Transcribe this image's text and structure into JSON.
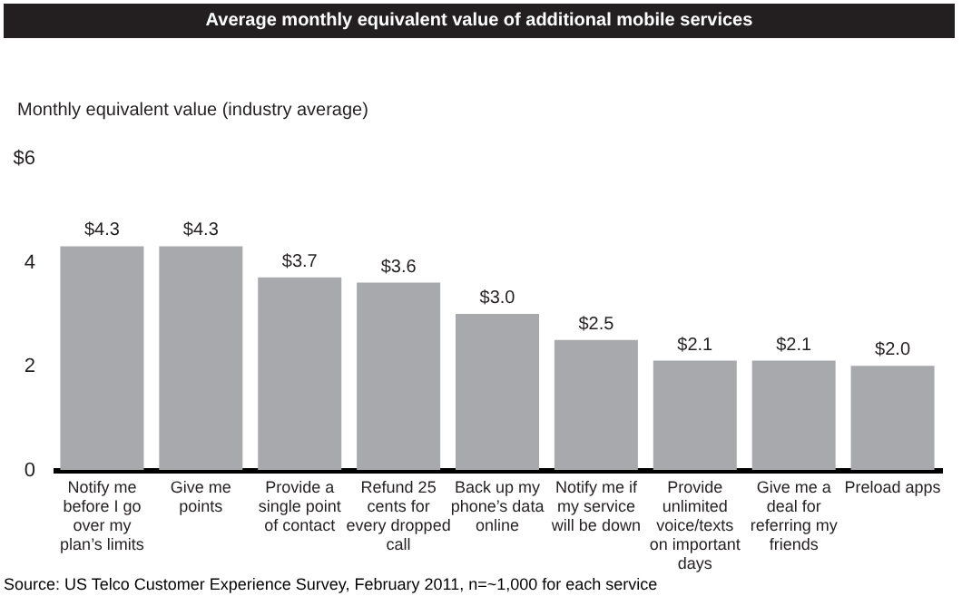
{
  "chart_data": {
    "type": "bar",
    "title": "Average monthly equivalent value of additional mobile services",
    "ylabel": "Monthly equivalent value (industry average)",
    "categories": [
      "Notify me before I go over my plan’s limits",
      "Give me points",
      "Provide a single point of contact",
      "Refund 25 cents for every dropped call",
      "Back up my phone’s data online",
      "Notify me if my service will be down",
      "Provide unlimited voice/texts on important days",
      "Give me a deal for referring my friends",
      "Preload apps"
    ],
    "values": [
      4.3,
      4.3,
      3.7,
      3.6,
      3.0,
      2.5,
      2.1,
      2.1,
      2.0
    ],
    "value_labels": [
      "$4.3",
      "$4.3",
      "$3.7",
      "$3.6",
      "$3.0",
      "$2.5",
      "$2.1",
      "$2.1",
      "$2.0"
    ],
    "color": "#a7a9ac",
    "ylim": [
      0,
      6
    ],
    "yticks": [
      0,
      2,
      4,
      {
        "value": 6,
        "label": "$6"
      }
    ],
    "grid": false,
    "annotations": [
      "Source: US Telco Customer Experience Survey, February 2011, n=~1,000 for each service"
    ]
  }
}
